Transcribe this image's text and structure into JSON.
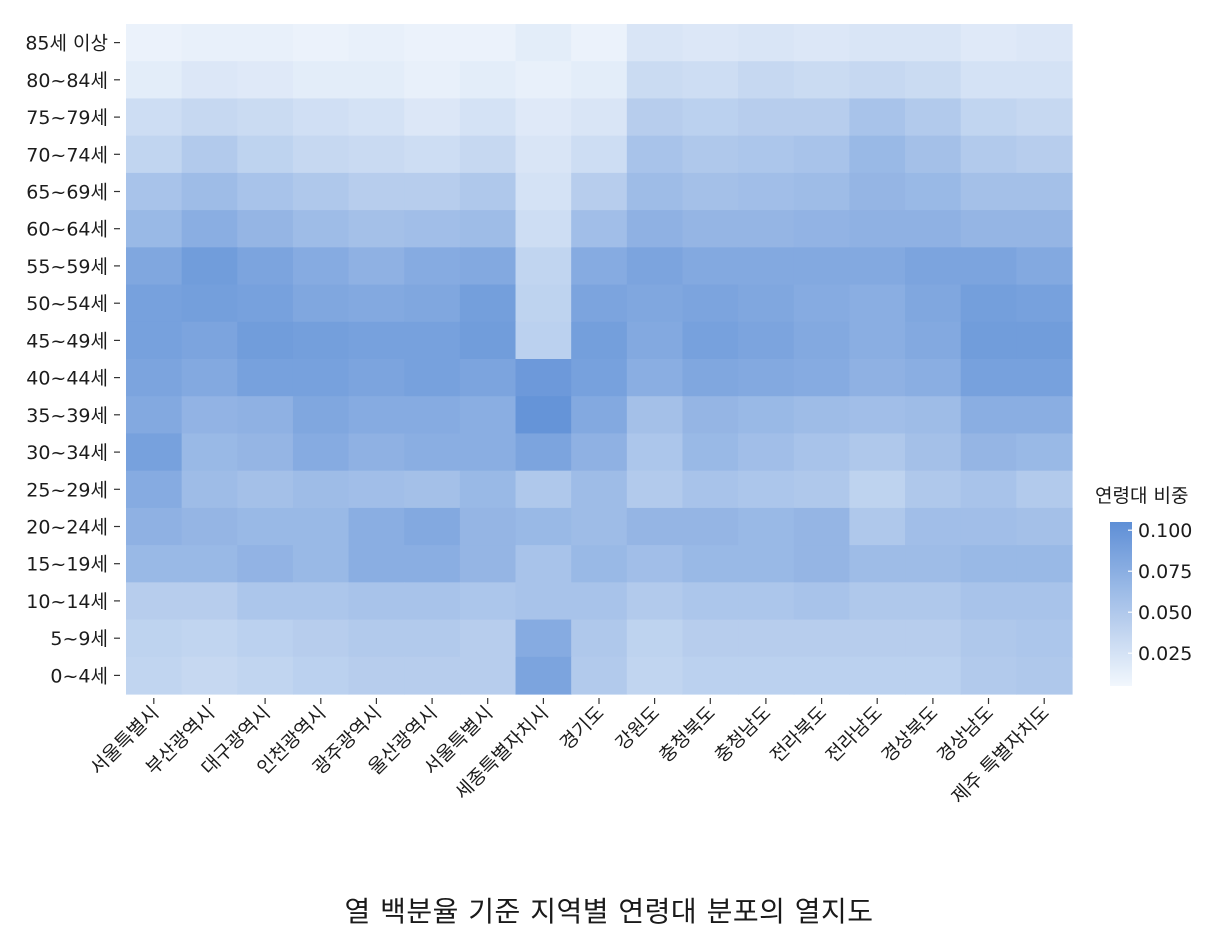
{
  "caption": "열 백분율 기준 지역별 연령대 분포의 열지도",
  "chart_data": {
    "type": "heatmap",
    "x_categories": [
      "서울특별시",
      "부산광역시",
      "대구광역시",
      "인천광역시",
      "광주광역시",
      "울산광역시",
      "서울특별시",
      "세종특별자치시",
      "경기도",
      "강원도",
      "충청북도",
      "충청남도",
      "전라북도",
      "전라남도",
      "경상북도",
      "경상남도",
      "제주 특별자치도"
    ],
    "y_categories": [
      "85세 이상",
      "80~84세",
      "75~79세",
      "70~74세",
      "65~69세",
      "60~64세",
      "55~59세",
      "50~54세",
      "45~49세",
      "40~44세",
      "35~39세",
      "30~34세",
      "25~29세",
      "20~24세",
      "15~19세",
      "10~14세",
      "5~9세",
      "0~4세"
    ],
    "values": [
      [
        0.01,
        0.012,
        0.012,
        0.01,
        0.012,
        0.01,
        0.01,
        0.015,
        0.01,
        0.022,
        0.02,
        0.022,
        0.02,
        0.022,
        0.022,
        0.018,
        0.02
      ],
      [
        0.015,
        0.02,
        0.018,
        0.015,
        0.015,
        0.012,
        0.015,
        0.012,
        0.015,
        0.032,
        0.03,
        0.035,
        0.032,
        0.035,
        0.032,
        0.025,
        0.025
      ],
      [
        0.03,
        0.035,
        0.032,
        0.028,
        0.025,
        0.02,
        0.025,
        0.018,
        0.022,
        0.045,
        0.042,
        0.045,
        0.045,
        0.055,
        0.048,
        0.038,
        0.035
      ],
      [
        0.038,
        0.048,
        0.04,
        0.035,
        0.033,
        0.03,
        0.035,
        0.022,
        0.03,
        0.055,
        0.05,
        0.052,
        0.055,
        0.065,
        0.058,
        0.048,
        0.045
      ],
      [
        0.055,
        0.062,
        0.055,
        0.05,
        0.045,
        0.045,
        0.05,
        0.025,
        0.045,
        0.062,
        0.058,
        0.06,
        0.062,
        0.068,
        0.065,
        0.058,
        0.058
      ],
      [
        0.065,
        0.075,
        0.068,
        0.062,
        0.058,
        0.06,
        0.062,
        0.03,
        0.06,
        0.072,
        0.068,
        0.068,
        0.07,
        0.072,
        0.072,
        0.068,
        0.068
      ],
      [
        0.082,
        0.092,
        0.085,
        0.078,
        0.072,
        0.078,
        0.08,
        0.038,
        0.078,
        0.085,
        0.08,
        0.08,
        0.08,
        0.08,
        0.085,
        0.085,
        0.08
      ],
      [
        0.088,
        0.09,
        0.088,
        0.082,
        0.08,
        0.082,
        0.09,
        0.04,
        0.085,
        0.082,
        0.085,
        0.082,
        0.078,
        0.075,
        0.082,
        0.09,
        0.088
      ],
      [
        0.088,
        0.085,
        0.092,
        0.09,
        0.088,
        0.088,
        0.092,
        0.042,
        0.09,
        0.08,
        0.088,
        0.085,
        0.08,
        0.075,
        0.08,
        0.092,
        0.092
      ],
      [
        0.085,
        0.08,
        0.088,
        0.088,
        0.085,
        0.088,
        0.085,
        0.095,
        0.088,
        0.075,
        0.082,
        0.08,
        0.078,
        0.072,
        0.075,
        0.088,
        0.088
      ],
      [
        0.08,
        0.07,
        0.072,
        0.082,
        0.078,
        0.078,
        0.075,
        0.1,
        0.08,
        0.058,
        0.068,
        0.065,
        0.062,
        0.06,
        0.062,
        0.075,
        0.075
      ],
      [
        0.088,
        0.065,
        0.068,
        0.078,
        0.072,
        0.075,
        0.075,
        0.085,
        0.072,
        0.052,
        0.065,
        0.06,
        0.055,
        0.05,
        0.058,
        0.068,
        0.065
      ],
      [
        0.078,
        0.062,
        0.058,
        0.062,
        0.06,
        0.058,
        0.065,
        0.05,
        0.062,
        0.048,
        0.055,
        0.052,
        0.05,
        0.04,
        0.05,
        0.055,
        0.048
      ],
      [
        0.072,
        0.068,
        0.065,
        0.065,
        0.075,
        0.08,
        0.068,
        0.065,
        0.062,
        0.068,
        0.068,
        0.065,
        0.068,
        0.05,
        0.06,
        0.06,
        0.058
      ],
      [
        0.065,
        0.065,
        0.07,
        0.065,
        0.075,
        0.075,
        0.068,
        0.055,
        0.065,
        0.06,
        0.065,
        0.065,
        0.068,
        0.062,
        0.062,
        0.065,
        0.065
      ],
      [
        0.045,
        0.045,
        0.052,
        0.052,
        0.055,
        0.055,
        0.052,
        0.055,
        0.055,
        0.048,
        0.052,
        0.052,
        0.055,
        0.05,
        0.05,
        0.055,
        0.055
      ],
      [
        0.04,
        0.038,
        0.042,
        0.045,
        0.048,
        0.048,
        0.045,
        0.078,
        0.05,
        0.04,
        0.045,
        0.045,
        0.045,
        0.045,
        0.045,
        0.05,
        0.052
      ],
      [
        0.038,
        0.035,
        0.038,
        0.042,
        0.045,
        0.045,
        0.045,
        0.085,
        0.048,
        0.038,
        0.042,
        0.042,
        0.042,
        0.042,
        0.042,
        0.048,
        0.05
      ]
    ],
    "colorbar": {
      "title": "연령대 비중",
      "ticks": [
        "0.025",
        "0.050",
        "0.075",
        "0.100"
      ],
      "tick_values": [
        0.025,
        0.05,
        0.075,
        0.1
      ],
      "range": [
        0.005,
        0.105
      ],
      "color_low": "#f2f7fd",
      "color_high": "#5e8fd6"
    },
    "grid": false
  }
}
